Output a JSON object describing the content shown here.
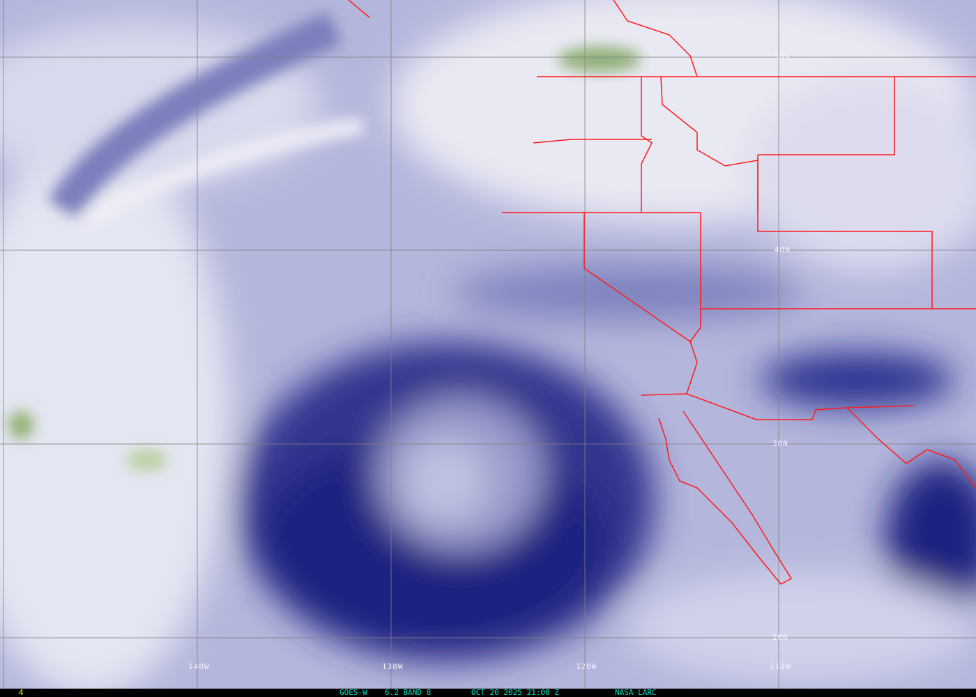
{
  "product": {
    "satellite": "GOES-W",
    "band": "6.2 BAND 8",
    "datetime": "OCT 20 2025 21:00 Z",
    "source": "NASA LARC",
    "frame": "4"
  },
  "grid": {
    "latitudes": [
      "50N",
      "40N",
      "30N",
      "20N"
    ],
    "longitudes": [
      "140W",
      "130W",
      "120W",
      "110W"
    ]
  },
  "colors": {
    "borders": "#ff1a1a",
    "grid": "#808080",
    "dry": "#141a78",
    "moist": "#f0f0f6",
    "ice": "#8fb070",
    "text": "#00e0c0",
    "frame": "#ffff40"
  }
}
